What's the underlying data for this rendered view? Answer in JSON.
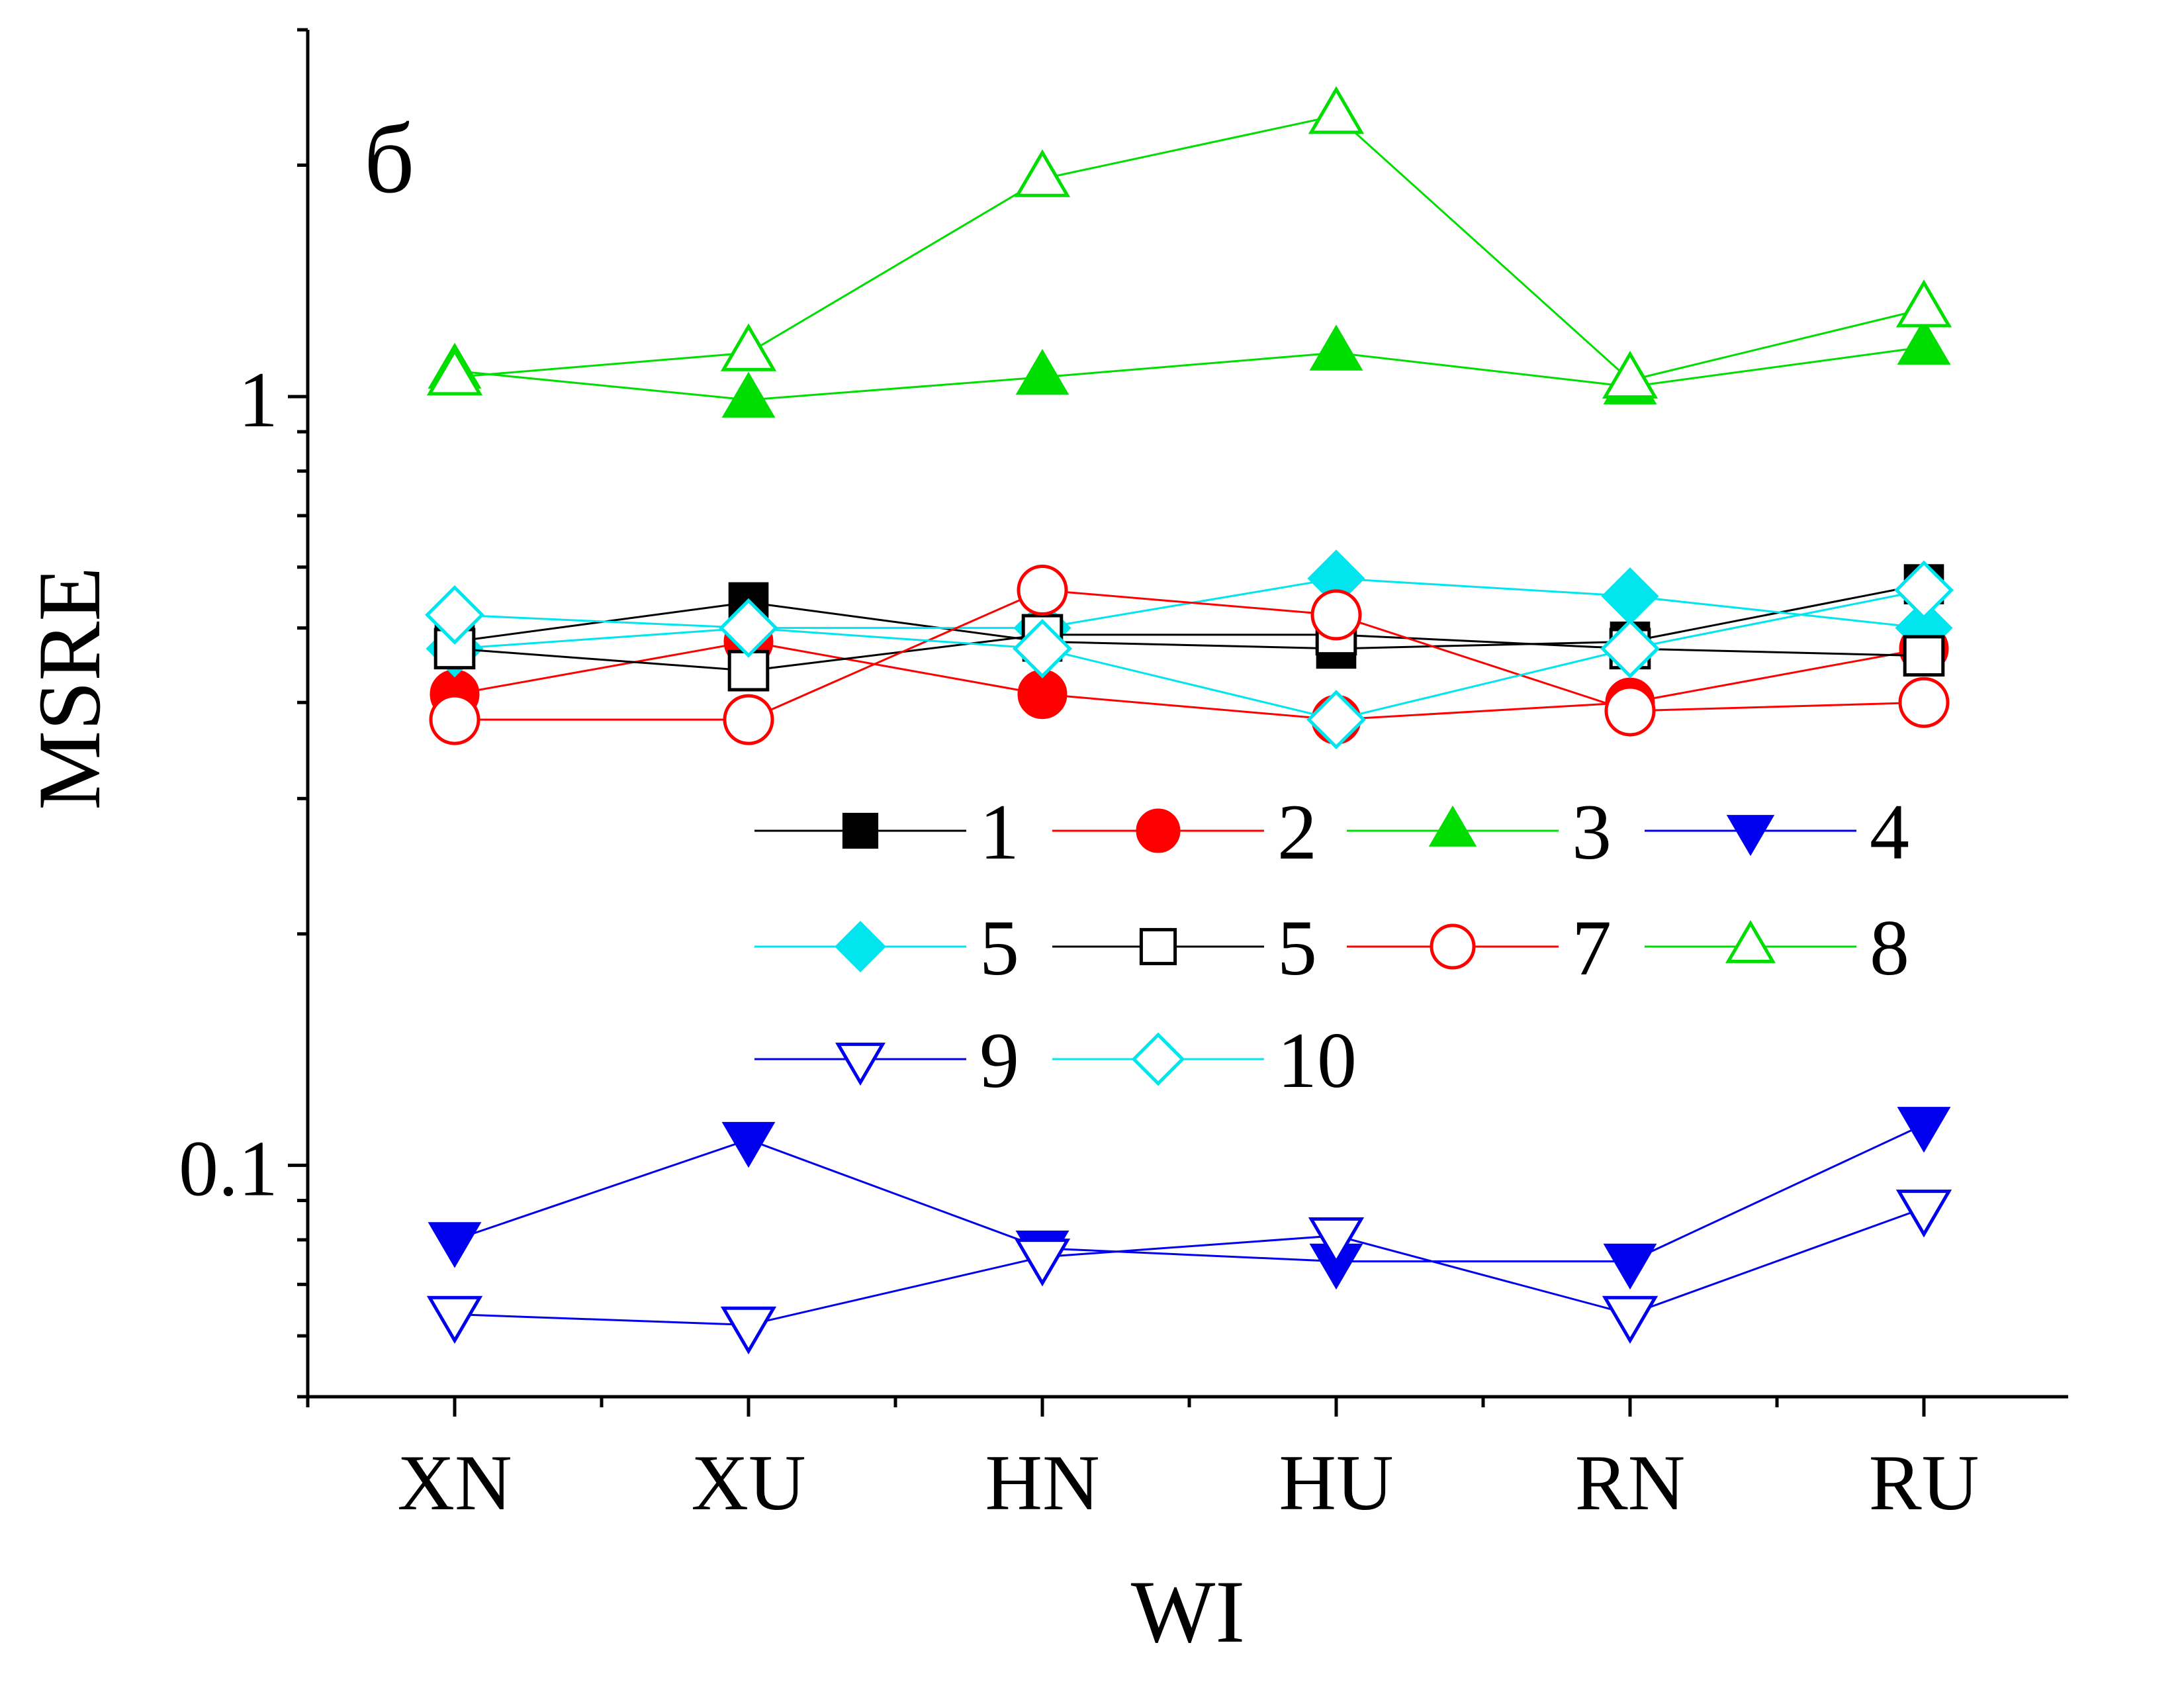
{
  "chart_data": {
    "type": "line",
    "panel_label": "б",
    "xlabel": "WI",
    "ylabel": "MSRE",
    "yscale": "log",
    "ylim": [
      0.05,
      3.0
    ],
    "categories": [
      "XN",
      "XU",
      "HN",
      "HU",
      "RN",
      "RU"
    ],
    "ytick_labels": [
      {
        "value": 1,
        "label": "1"
      },
      {
        "value": 0.1,
        "label": "0.1"
      }
    ],
    "grid": false,
    "legend_position": "center, 3 rows x 4 columns",
    "series": [
      {
        "name": "1",
        "color": "#000000",
        "marker": "square",
        "filled": true,
        "values": [
          0.48,
          0.54,
          0.48,
          0.47,
          0.48,
          0.57
        ]
      },
      {
        "name": "2",
        "color": "#ff0000",
        "marker": "circle",
        "filled": true,
        "values": [
          0.41,
          0.48,
          0.41,
          0.38,
          0.4,
          0.47
        ]
      },
      {
        "name": "3",
        "color": "#00dd00",
        "marker": "triangle-up",
        "filled": true,
        "values": [
          1.08,
          0.99,
          1.06,
          1.14,
          1.03,
          1.16
        ]
      },
      {
        "name": "4",
        "color": "#0000ee",
        "marker": "triangle-down",
        "filled": true,
        "values": [
          0.08,
          0.108,
          0.078,
          0.075,
          0.075,
          0.113
        ]
      },
      {
        "name": "5",
        "color": "#00e5ee",
        "marker": "diamond",
        "filled": true,
        "values": [
          0.47,
          0.5,
          0.5,
          0.58,
          0.55,
          0.5
        ]
      },
      {
        "name": "5",
        "color": "#000000",
        "marker": "square",
        "filled": false,
        "values": [
          0.47,
          0.44,
          0.49,
          0.49,
          0.47,
          0.46
        ]
      },
      {
        "name": "7",
        "color": "#ff0000",
        "marker": "circle",
        "filled": false,
        "values": [
          0.38,
          0.38,
          0.56,
          0.52,
          0.39,
          0.4
        ]
      },
      {
        "name": "8",
        "color": "#00dd00",
        "marker": "triangle-up",
        "filled": false,
        "values": [
          1.06,
          1.14,
          1.92,
          2.32,
          1.05,
          1.3
        ]
      },
      {
        "name": "9",
        "color": "#0000ee",
        "marker": "triangle-down",
        "filled": false,
        "values": [
          0.064,
          0.062,
          0.076,
          0.081,
          0.064,
          0.088
        ]
      },
      {
        "name": "10",
        "color": "#00e5ee",
        "marker": "diamond",
        "filled": false,
        "values": [
          0.52,
          0.5,
          0.47,
          0.38,
          0.47,
          0.56
        ]
      }
    ]
  }
}
